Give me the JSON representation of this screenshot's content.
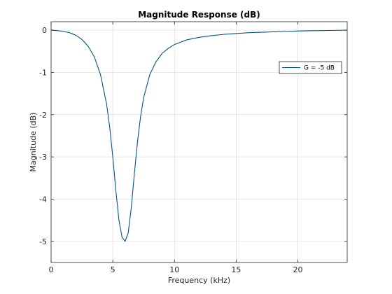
{
  "chart_data": {
    "type": "line",
    "title": "Magnitude Response (dB)",
    "xlabel": "Frequency (kHz)",
    "ylabel": "Magnitude (dB)",
    "xlim": [
      0,
      24
    ],
    "ylim": [
      -5.5,
      0.2
    ],
    "xticks": [
      0,
      5,
      10,
      15,
      20
    ],
    "yticks": [
      0,
      -1,
      -2,
      -3,
      -4,
      -5
    ],
    "xtick_labels": [
      "0",
      "5",
      "10",
      "15",
      "20"
    ],
    "ytick_labels": [
      "0",
      "-1",
      "-2",
      "-3",
      "-4",
      "-5"
    ],
    "grid": true,
    "legend_position": "top-right",
    "series": [
      {
        "name": "G = -5 dB",
        "color": "#00567a",
        "x": [
          0,
          0.5,
          1,
          1.5,
          2,
          2.5,
          3,
          3.5,
          4,
          4.5,
          4.75,
          5,
          5.25,
          5.5,
          5.75,
          6,
          6.25,
          6.5,
          6.75,
          7,
          7.25,
          7.5,
          8,
          8.5,
          9,
          9.5,
          10,
          11,
          12,
          13,
          14,
          15,
          16,
          17,
          18,
          19,
          20,
          21,
          22,
          23,
          24
        ],
        "y": [
          0,
          -0.01,
          -0.03,
          -0.06,
          -0.12,
          -0.22,
          -0.38,
          -0.63,
          -1.05,
          -1.75,
          -2.3,
          -3.0,
          -3.8,
          -4.5,
          -4.9,
          -5.0,
          -4.8,
          -4.2,
          -3.4,
          -2.65,
          -2.05,
          -1.6,
          -1.05,
          -0.75,
          -0.55,
          -0.43,
          -0.34,
          -0.23,
          -0.17,
          -0.13,
          -0.1,
          -0.08,
          -0.06,
          -0.05,
          -0.04,
          -0.03,
          -0.02,
          -0.015,
          -0.01,
          -0.005,
          0
        ]
      }
    ]
  }
}
